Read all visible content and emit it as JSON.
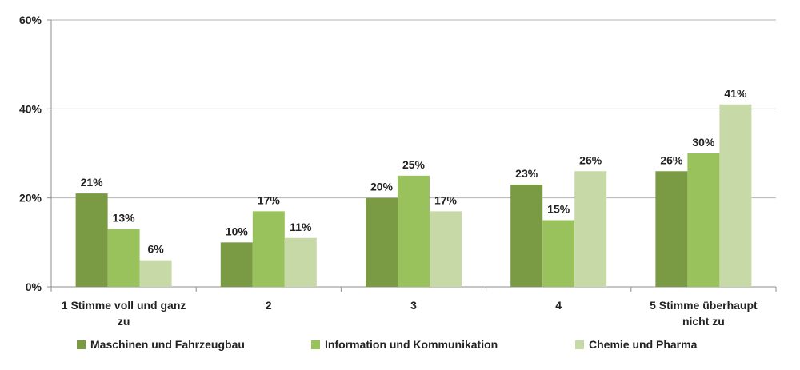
{
  "chart_data": {
    "type": "bar",
    "categories": [
      "1 Stimme voll und ganz zu",
      "2",
      "3",
      "4",
      "5 Stimme überhaupt nicht zu"
    ],
    "category_lines": [
      [
        "1 Stimme voll und ganz",
        "zu"
      ],
      [
        "2"
      ],
      [
        "3"
      ],
      [
        "4"
      ],
      [
        "5 Stimme überhaupt",
        "nicht zu"
      ]
    ],
    "series": [
      {
        "name": "Maschinen und Fahrzeugbau",
        "values": [
          21,
          10,
          20,
          23,
          26
        ],
        "labels": [
          "21%",
          "10%",
          "20%",
          "23%",
          "26%"
        ],
        "color": "#7a9a44"
      },
      {
        "name": "Information und Kommunikation",
        "values": [
          13,
          17,
          25,
          15,
          30
        ],
        "labels": [
          "13%",
          "17%",
          "25%",
          "15%",
          "30%"
        ],
        "color": "#9ac25c"
      },
      {
        "name": "Chemie und Pharma",
        "values": [
          6,
          11,
          17,
          26,
          41
        ],
        "labels": [
          "6%",
          "11%",
          "17%",
          "26%",
          "41%"
        ],
        "color": "#c8d9a8"
      }
    ],
    "ylim": [
      0,
      60
    ],
    "yticks": [
      0,
      20,
      40,
      60
    ],
    "ytick_labels": [
      "0%",
      "20%",
      "40%",
      "60%"
    ],
    "grid": true,
    "legend_position": "bottom"
  }
}
